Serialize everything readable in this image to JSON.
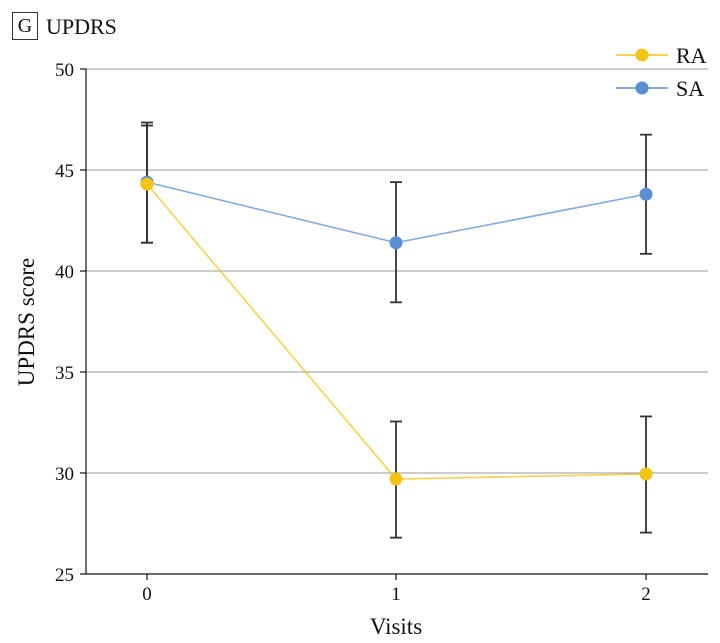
{
  "panel": {
    "letter": "G",
    "title": "UPDRS"
  },
  "chart_data": {
    "type": "line",
    "title": "UPDRS",
    "xlabel": "Visits",
    "ylabel": "UPDRS score",
    "categories": [
      "0",
      "1",
      "2"
    ],
    "ylim": [
      25,
      50
    ],
    "yticks": [
      25,
      30,
      35,
      40,
      45,
      50
    ],
    "grid": true,
    "legend_position": "top-right",
    "error_bars": true,
    "series": [
      {
        "name": "RA",
        "color": "#f2c414",
        "values": [
          44.3,
          29.7,
          29.95
        ],
        "err_low": [
          41.4,
          26.8,
          27.05
        ],
        "err_high": [
          47.2,
          32.55,
          32.8
        ]
      },
      {
        "name": "SA",
        "color": "#5b8fd4",
        "values": [
          44.4,
          41.4,
          43.8
        ],
        "err_low": [
          41.4,
          38.45,
          40.85
        ],
        "err_high": [
          47.35,
          44.4,
          46.75
        ]
      }
    ]
  }
}
